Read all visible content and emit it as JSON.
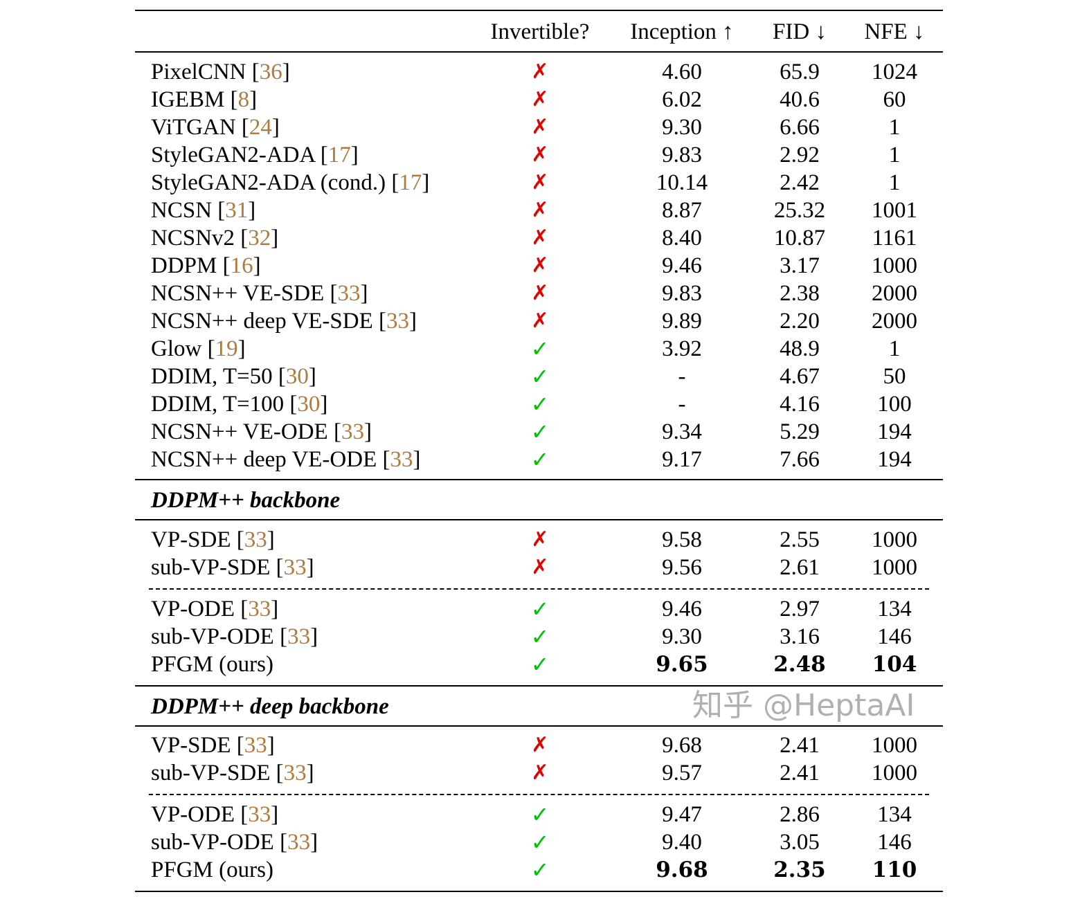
{
  "header": {
    "name": "",
    "invertible": "Invertible?",
    "inception": "Inception ↑",
    "fid": "FID ↓",
    "nfe": "NFE ↓"
  },
  "colors": {
    "citation": "#b07a3c",
    "cross": "#e00000",
    "check": "#00c000"
  },
  "symbols": {
    "yes": "✓",
    "no": "✗"
  },
  "groups": [
    {
      "title": "",
      "blocks": [
        [
          {
            "name": "PixelCNN",
            "cite": "36",
            "invertible": false,
            "inception": "4.60",
            "fid": "65.9",
            "nfe": "1024"
          },
          {
            "name": "IGEBM",
            "cite": "8",
            "invertible": false,
            "inception": "6.02",
            "fid": "40.6",
            "nfe": "60"
          },
          {
            "name": "ViTGAN",
            "cite": "24",
            "invertible": false,
            "inception": "9.30",
            "fid": "6.66",
            "nfe": "1"
          },
          {
            "name": "StyleGAN2-ADA",
            "cite": "17",
            "invertible": false,
            "inception": "9.83",
            "fid": "2.92",
            "nfe": "1"
          },
          {
            "name": "StyleGAN2-ADA (cond.)",
            "cite": "17",
            "invertible": false,
            "inception": "10.14",
            "fid": "2.42",
            "nfe": "1"
          },
          {
            "name": "NCSN",
            "cite": "31",
            "invertible": false,
            "inception": "8.87",
            "fid": "25.32",
            "nfe": "1001"
          },
          {
            "name": "NCSNv2",
            "cite": "32",
            "invertible": false,
            "inception": "8.40",
            "fid": "10.87",
            "nfe": "1161"
          },
          {
            "name": "DDPM",
            "cite": "16",
            "invertible": false,
            "inception": "9.46",
            "fid": "3.17",
            "nfe": "1000"
          },
          {
            "name": "NCSN++ VE-SDE",
            "cite": "33",
            "invertible": false,
            "inception": "9.83",
            "fid": "2.38",
            "nfe": "2000"
          },
          {
            "name": "NCSN++ deep VE-SDE",
            "cite": "33",
            "invertible": false,
            "inception": "9.89",
            "fid": "2.20",
            "nfe": "2000"
          },
          {
            "name": "Glow",
            "cite": "19",
            "invertible": true,
            "inception": "3.92",
            "fid": "48.9",
            "nfe": "1"
          },
          {
            "name": "DDIM, T=50",
            "cite": "30",
            "invertible": true,
            "inception": "-",
            "fid": "4.67",
            "nfe": "50"
          },
          {
            "name": "DDIM, T=100",
            "cite": "30",
            "invertible": true,
            "inception": "-",
            "fid": "4.16",
            "nfe": "100"
          },
          {
            "name": "NCSN++ VE-ODE",
            "cite": "33",
            "invertible": true,
            "inception": "9.34",
            "fid": "5.29",
            "nfe": "194"
          },
          {
            "name": "NCSN++ deep VE-ODE",
            "cite": "33",
            "invertible": true,
            "inception": "9.17",
            "fid": "7.66",
            "nfe": "194"
          }
        ]
      ]
    },
    {
      "title": "DDPM++ backbone",
      "blocks": [
        [
          {
            "name": "VP-SDE",
            "cite": "33",
            "invertible": false,
            "inception": "9.58",
            "fid": "2.55",
            "nfe": "1000"
          },
          {
            "name": "sub-VP-SDE",
            "cite": "33",
            "invertible": false,
            "inception": "9.56",
            "fid": "2.61",
            "nfe": "1000"
          }
        ],
        [
          {
            "name": "VP-ODE",
            "cite": "33",
            "invertible": true,
            "inception": "9.46",
            "fid": "2.97",
            "nfe": "134"
          },
          {
            "name": "sub-VP-ODE",
            "cite": "33",
            "invertible": true,
            "inception": "9.30",
            "fid": "3.16",
            "nfe": "146"
          },
          {
            "name": "PFGM (ours)",
            "cite": "",
            "invertible": true,
            "inception": "9.65",
            "fid": "2.48",
            "nfe": "104",
            "bold": true
          }
        ]
      ]
    },
    {
      "title": "DDPM++ deep backbone",
      "blocks": [
        [
          {
            "name": "VP-SDE",
            "cite": "33",
            "invertible": false,
            "inception": "9.68",
            "fid": "2.41",
            "nfe": "1000"
          },
          {
            "name": "sub-VP-SDE",
            "cite": "33",
            "invertible": false,
            "inception": "9.57",
            "fid": "2.41",
            "nfe": "1000"
          }
        ],
        [
          {
            "name": "VP-ODE",
            "cite": "33",
            "invertible": true,
            "inception": "9.47",
            "fid": "2.86",
            "nfe": "134"
          },
          {
            "name": "sub-VP-ODE",
            "cite": "33",
            "invertible": true,
            "inception": "9.40",
            "fid": "3.05",
            "nfe": "146"
          },
          {
            "name": "PFGM (ours)",
            "cite": "",
            "invertible": true,
            "inception": "9.68",
            "fid": "2.35",
            "nfe": "110",
            "bold": true
          }
        ]
      ]
    }
  ],
  "watermark": "知乎 @HeptaAI"
}
